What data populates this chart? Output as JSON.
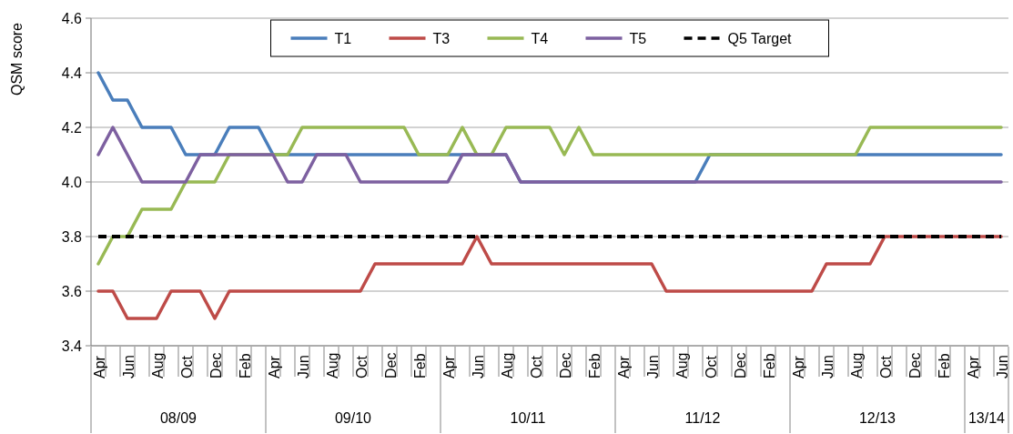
{
  "chart_data": {
    "type": "line",
    "ylabel": "QSM score",
    "categories": [
      "Apr",
      null,
      "Jun",
      null,
      "Aug",
      null,
      "Oct",
      null,
      "Dec",
      null,
      "Feb",
      null,
      "Apr",
      null,
      "Jun",
      null,
      "Aug",
      null,
      "Oct",
      null,
      "Dec",
      null,
      "Feb",
      null,
      "Apr",
      null,
      "Jun",
      null,
      "Aug",
      null,
      "Oct",
      null,
      "Dec",
      null,
      "Feb",
      null,
      "Apr",
      null,
      "Jun",
      null,
      "Aug",
      null,
      "Oct",
      null,
      "Dec",
      null,
      "Feb",
      null,
      "Apr",
      null,
      "Jun",
      null,
      "Aug",
      null,
      "Oct",
      null,
      "Dec",
      null,
      "Feb",
      null,
      "Apr",
      null,
      "Jun"
    ],
    "annotations": [
      "08/09",
      "09/10",
      "10/11",
      "11/12",
      "12/13",
      "13/14"
    ],
    "ylim": [
      3.4,
      4.6
    ],
    "yticks": [
      3.4,
      3.6,
      3.8,
      {
        "value": 4,
        "label": "4.0"
      },
      4.2,
      4.4,
      4.6
    ],
    "grid": "y",
    "legend": "top",
    "line_style": "solid",
    "series": [
      {
        "name": "T1",
        "color": "#4a7ebb",
        "values": [
          4.4,
          4.3,
          4.3,
          4.2,
          4.2,
          4.2,
          4.1,
          4.1,
          4.1,
          4.2,
          4.2,
          4.2,
          4.1,
          4.1,
          4.1,
          4.1,
          4.1,
          4.1,
          4.1,
          4.1,
          4.1,
          4.1,
          4.1,
          4.1,
          4.1,
          4.1,
          4.1,
          4.1,
          4.1,
          4.0,
          4.0,
          4.0,
          4.0,
          4.0,
          4.0,
          4.0,
          4.0,
          4.0,
          4.0,
          4.0,
          4.0,
          4.0,
          4.1,
          4.1,
          4.1,
          4.1,
          4.1,
          4.1,
          4.1,
          4.1,
          4.1,
          4.1,
          4.1,
          4.1,
          4.1,
          4.1,
          4.1,
          4.1,
          4.1,
          4.1,
          4.1,
          4.1,
          4.1
        ]
      },
      {
        "name": "T3",
        "color": "#be4b48",
        "values": [
          3.6,
          3.6,
          3.5,
          3.5,
          3.5,
          3.6,
          3.6,
          3.6,
          3.5,
          3.6,
          3.6,
          3.6,
          3.6,
          3.6,
          3.6,
          3.6,
          3.6,
          3.6,
          3.6,
          3.7,
          3.7,
          3.7,
          3.7,
          3.7,
          3.7,
          3.7,
          3.8,
          3.7,
          3.7,
          3.7,
          3.7,
          3.7,
          3.7,
          3.7,
          3.7,
          3.7,
          3.7,
          3.7,
          3.7,
          3.6,
          3.6,
          3.6,
          3.6,
          3.6,
          3.6,
          3.6,
          3.6,
          3.6,
          3.6,
          3.6,
          3.7,
          3.7,
          3.7,
          3.7,
          3.8,
          3.8,
          3.8,
          3.8,
          3.8,
          3.8,
          3.8,
          3.8,
          3.8
        ]
      },
      {
        "name": "T4",
        "color": "#98b954",
        "values": [
          3.7,
          3.8,
          3.8,
          3.9,
          3.9,
          3.9,
          4.0,
          4.0,
          4.0,
          4.1,
          4.1,
          4.1,
          4.1,
          4.1,
          4.2,
          4.2,
          4.2,
          4.2,
          4.2,
          4.2,
          4.2,
          4.2,
          4.1,
          4.1,
          4.1,
          4.2,
          4.1,
          4.1,
          4.2,
          4.2,
          4.2,
          4.2,
          4.1,
          4.2,
          4.1,
          4.1,
          4.1,
          4.1,
          4.1,
          4.1,
          4.1,
          4.1,
          4.1,
          4.1,
          4.1,
          4.1,
          4.1,
          4.1,
          4.1,
          4.1,
          4.1,
          4.1,
          4.1,
          4.2,
          4.2,
          4.2,
          4.2,
          4.2,
          4.2,
          4.2,
          4.2,
          4.2,
          4.2
        ]
      },
      {
        "name": "T5",
        "color": "#7d60a0",
        "values": [
          4.1,
          4.2,
          4.1,
          4.0,
          4.0,
          4.0,
          4.0,
          4.1,
          4.1,
          4.1,
          4.1,
          4.1,
          4.1,
          4.0,
          4.0,
          4.1,
          4.1,
          4.1,
          4.0,
          4.0,
          4.0,
          4.0,
          4.0,
          4.0,
          4.0,
          4.1,
          4.1,
          4.1,
          4.1,
          4.0,
          4.0,
          4.0,
          4.0,
          4.0,
          4.0,
          4.0,
          4.0,
          4.0,
          4.0,
          4.0,
          4.0,
          4.0,
          4.0,
          4.0,
          4.0,
          4.0,
          4.0,
          4.0,
          4.0,
          4.0,
          4.0,
          4.0,
          4.0,
          4.0,
          4.0,
          4.0,
          4.0,
          4.0,
          4.0,
          4.0,
          4.0,
          4.0,
          4.0
        ]
      },
      {
        "name": "Q5 Target",
        "color": "#000000",
        "line_style": "dashed",
        "values": [
          3.8,
          3.8,
          3.8,
          3.8,
          3.8,
          3.8,
          3.8,
          3.8,
          3.8,
          3.8,
          3.8,
          3.8,
          3.8,
          3.8,
          3.8,
          3.8,
          3.8,
          3.8,
          3.8,
          3.8,
          3.8,
          3.8,
          3.8,
          3.8,
          3.8,
          3.8,
          3.8,
          3.8,
          3.8,
          3.8,
          3.8,
          3.8,
          3.8,
          3.8,
          3.8,
          3.8,
          3.8,
          3.8,
          3.8,
          3.8,
          3.8,
          3.8,
          3.8,
          3.8,
          3.8,
          3.8,
          3.8,
          3.8,
          3.8,
          3.8,
          3.8,
          3.8,
          3.8,
          3.8,
          3.8,
          3.8,
          3.8,
          3.8,
          3.8,
          3.8,
          3.8,
          3.8,
          3.8
        ]
      }
    ]
  }
}
